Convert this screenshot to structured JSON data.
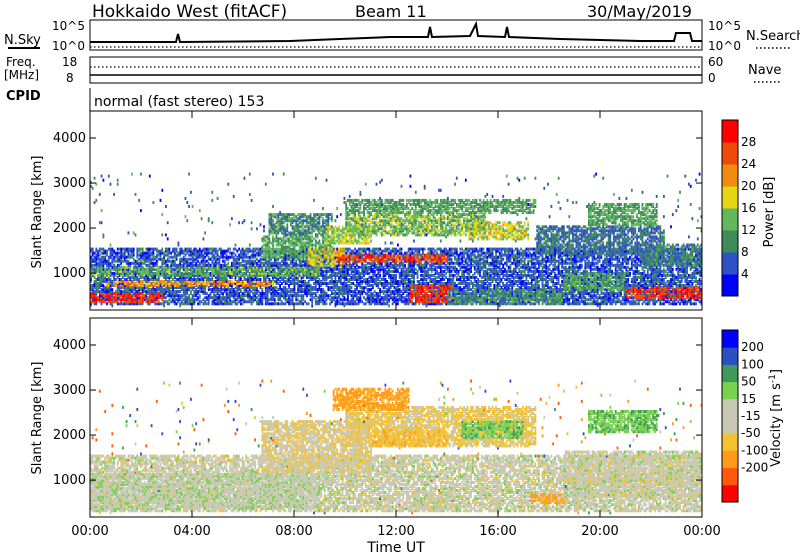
{
  "header": {
    "station": "Hokkaido West (fitACF)",
    "beam": "Beam 11",
    "date": "30/May/2019"
  },
  "noise_panel": {
    "left_label": "N.Sky",
    "right_label": "N.Search",
    "tick_top": "10^5",
    "tick_bottom": "10^0"
  },
  "freq_panel": {
    "left_label_1": "Freq.",
    "left_label_2": "[MHz]",
    "tick_top": "18",
    "tick_bottom": "8",
    "right_label": "Nave",
    "right_tick_top": "60",
    "right_tick_bottom": "0"
  },
  "cpid": {
    "label": "CPID",
    "mode": "normal (fast stereo) 153"
  },
  "colors": {
    "power_scale": [
      "#0000ff",
      "#2e52c8",
      "#3e8a5a",
      "#62b85a",
      "#e6d616",
      "#f08c10",
      "#ee4a0a",
      "#ff0000"
    ],
    "velocity_scale": [
      "#ff0000",
      "#ff5a0a",
      "#ff9a1a",
      "#f2c232",
      "#c8c8b4",
      "#c8c8b4",
      "#7ad050",
      "#3e9a5a",
      "#2a4fc0",
      "#0000ff"
    ]
  },
  "chart_data": [
    {
      "type": "heatmap",
      "panel": "power",
      "ylabel": "Slant Range [km]",
      "yticks": [
        "1000",
        "2000",
        "3000",
        "4000"
      ],
      "ylim": [
        180,
        4600
      ],
      "xlim": [
        0,
        24
      ],
      "colorbar": {
        "label": "Power [dB]",
        "ticks": [
          "4",
          "8",
          "12",
          "16",
          "20",
          "24",
          "28"
        ],
        "range": [
          0,
          32
        ]
      },
      "regions": [
        {
          "t0": 0.0,
          "t1": 24.0,
          "r0": 250,
          "r1": 1500,
          "value": 6
        },
        {
          "t0": 0.0,
          "t1": 2.8,
          "r0": 300,
          "r1": 550,
          "value": 28
        },
        {
          "t0": 0.6,
          "t1": 7.2,
          "r0": 650,
          "r1": 800,
          "value": 22
        },
        {
          "t0": 0.0,
          "t1": 9.0,
          "r0": 900,
          "r1": 1100,
          "value": 13
        },
        {
          "t0": 6.7,
          "t1": 9.5,
          "r0": 1300,
          "r1": 1800,
          "value": 12
        },
        {
          "t0": 7.0,
          "t1": 9.5,
          "r0": 1800,
          "r1": 2300,
          "value": 10
        },
        {
          "t0": 8.5,
          "t1": 10.0,
          "r0": 1100,
          "r1": 1500,
          "value": 18
        },
        {
          "t0": 9.6,
          "t1": 14.0,
          "r0": 1200,
          "r1": 1400,
          "value": 26
        },
        {
          "t0": 9.2,
          "t1": 11.0,
          "r0": 1600,
          "r1": 2000,
          "value": 16
        },
        {
          "t0": 10.0,
          "t1": 15.5,
          "r0": 1800,
          "r1": 2300,
          "value": 14
        },
        {
          "t0": 10.0,
          "t1": 17.5,
          "r0": 2300,
          "r1": 2600,
          "value": 12
        },
        {
          "t0": 14.8,
          "t1": 17.2,
          "r0": 1700,
          "r1": 2100,
          "value": 17
        },
        {
          "t0": 12.5,
          "t1": 14.2,
          "r0": 300,
          "r1": 700,
          "value": 28
        },
        {
          "t0": 14.0,
          "t1": 18.5,
          "r0": 250,
          "r1": 600,
          "value": 10
        },
        {
          "t0": 17.5,
          "t1": 22.5,
          "r0": 1400,
          "r1": 2000,
          "value": 8
        },
        {
          "t0": 18.5,
          "t1": 21.0,
          "r0": 600,
          "r1": 1000,
          "value": 12
        },
        {
          "t0": 19.5,
          "t1": 22.2,
          "r0": 2000,
          "r1": 2500,
          "value": 12
        },
        {
          "t0": 21.0,
          "t1": 24.0,
          "r0": 400,
          "r1": 650,
          "value": 28
        },
        {
          "t0": 21.5,
          "t1": 24.0,
          "r0": 1100,
          "r1": 1600,
          "value": 9
        }
      ]
    },
    {
      "type": "heatmap",
      "panel": "velocity",
      "ylabel": "Slant Range [km]",
      "yticks": [
        "1000",
        "2000",
        "3000",
        "4000"
      ],
      "ylim": [
        180,
        4600
      ],
      "xlim": [
        0,
        24
      ],
      "xlabel": "Time UT",
      "xticks": [
        "00:00",
        "04:00",
        "08:00",
        "12:00",
        "16:00",
        "20:00",
        "00:00"
      ],
      "colorbar": {
        "label": "Velocity [m s^-1]",
        "ticks": [
          "200",
          "100",
          "50",
          "15",
          "-15",
          "-50",
          "-100",
          "-200"
        ],
        "range": [
          -250,
          250
        ]
      },
      "regions": [
        {
          "t0": 0.0,
          "t1": 24.0,
          "r0": 250,
          "r1": 1500,
          "value": 0
        },
        {
          "t0": 0.0,
          "t1": 9.0,
          "r0": 300,
          "r1": 1100,
          "value": 5
        },
        {
          "t0": 6.7,
          "t1": 11.0,
          "r0": 1100,
          "r1": 2300,
          "value": -10
        },
        {
          "t0": 10.0,
          "t1": 17.5,
          "r0": 1700,
          "r1": 2600,
          "value": -20
        },
        {
          "t0": 9.5,
          "t1": 12.5,
          "r0": 2500,
          "r1": 3000,
          "value": -60
        },
        {
          "t0": 11.0,
          "t1": 14.0,
          "r0": 1700,
          "r1": 2100,
          "value": -40
        },
        {
          "t0": 12.5,
          "t1": 14.2,
          "r0": 300,
          "r1": 700,
          "value": 0
        },
        {
          "t0": 17.2,
          "t1": 18.6,
          "r0": 450,
          "r1": 650,
          "value": -60
        },
        {
          "t0": 14.5,
          "t1": 17.0,
          "r0": 1900,
          "r1": 2300,
          "value": 40
        },
        {
          "t0": 19.5,
          "t1": 22.2,
          "r0": 2000,
          "r1": 2500,
          "value": 40
        },
        {
          "t0": 18.5,
          "t1": 24.0,
          "r0": 600,
          "r1": 1600,
          "value": 0
        }
      ]
    }
  ]
}
